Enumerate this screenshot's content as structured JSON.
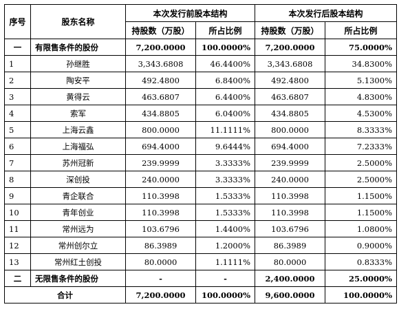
{
  "headers": {
    "seq": "序号",
    "name": "股东名称",
    "before_group": "本次发行前股本结构",
    "after_group": "本次发行后股本结构",
    "shares": "持股数（万股）",
    "ratio": "所占比例"
  },
  "restricted": {
    "seq": "一",
    "name": "有限售条件的股份",
    "before_shares": "7,200.0000",
    "before_ratio": "100.0000%",
    "after_shares": "7,200.0000",
    "after_ratio": "75.0000%"
  },
  "rows": [
    {
      "seq": "1",
      "name": "孙继胜",
      "before_shares": "3,343.6808",
      "before_ratio": "46.4400%",
      "after_shares": "3,343.6808",
      "after_ratio": "34.8300%"
    },
    {
      "seq": "2",
      "name": "陶安平",
      "before_shares": "492.4800",
      "before_ratio": "6.8400%",
      "after_shares": "492.4800",
      "after_ratio": "5.1300%"
    },
    {
      "seq": "3",
      "name": "黄得云",
      "before_shares": "463.6807",
      "before_ratio": "6.4400%",
      "after_shares": "463.6807",
      "after_ratio": "4.8300%"
    },
    {
      "seq": "4",
      "name": "索军",
      "before_shares": "434.8805",
      "before_ratio": "6.0400%",
      "after_shares": "434.8805",
      "after_ratio": "4.5300%"
    },
    {
      "seq": "5",
      "name": "上海云鑫",
      "before_shares": "800.0000",
      "before_ratio": "11.1111%",
      "after_shares": "800.0000",
      "after_ratio": "8.3333%"
    },
    {
      "seq": "6",
      "name": "上海福弘",
      "before_shares": "694.4000",
      "before_ratio": "9.6444%",
      "after_shares": "694.4000",
      "after_ratio": "7.2333%"
    },
    {
      "seq": "7",
      "name": "苏州冠新",
      "before_shares": "239.9999",
      "before_ratio": "3.3333%",
      "after_shares": "239.9999",
      "after_ratio": "2.5000%"
    },
    {
      "seq": "8",
      "name": "深创投",
      "before_shares": "240.0000",
      "before_ratio": "3.3333%",
      "after_shares": "240.0000",
      "after_ratio": "2.5000%"
    },
    {
      "seq": "9",
      "name": "青企联合",
      "before_shares": "110.3998",
      "before_ratio": "1.5333%",
      "after_shares": "110.3998",
      "after_ratio": "1.1500%"
    },
    {
      "seq": "10",
      "name": "青年创业",
      "before_shares": "110.3998",
      "before_ratio": "1.5333%",
      "after_shares": "110.3998",
      "after_ratio": "1.1500%"
    },
    {
      "seq": "11",
      "name": "常州远为",
      "before_shares": "103.6796",
      "before_ratio": "1.4400%",
      "after_shares": "103.6796",
      "after_ratio": "1.0800%"
    },
    {
      "seq": "12",
      "name": "常州创尔立",
      "before_shares": "86.3989",
      "before_ratio": "1.2000%",
      "after_shares": "86.3989",
      "after_ratio": "0.9000%"
    },
    {
      "seq": "13",
      "name": "常州红土创投",
      "before_shares": "80.0000",
      "before_ratio": "1.1111%",
      "after_shares": "80.0000",
      "after_ratio": "0.8333%"
    }
  ],
  "unrestricted": {
    "seq": "二",
    "name": "无限售条件的股份",
    "before_shares": "-",
    "before_ratio": "-",
    "after_shares": "2,400.0000",
    "after_ratio": "25.0000%"
  },
  "total": {
    "name": "合计",
    "before_shares": "7,200.0000",
    "before_ratio": "100.0000%",
    "after_shares": "9,600.0000",
    "after_ratio": "100.0000%"
  }
}
